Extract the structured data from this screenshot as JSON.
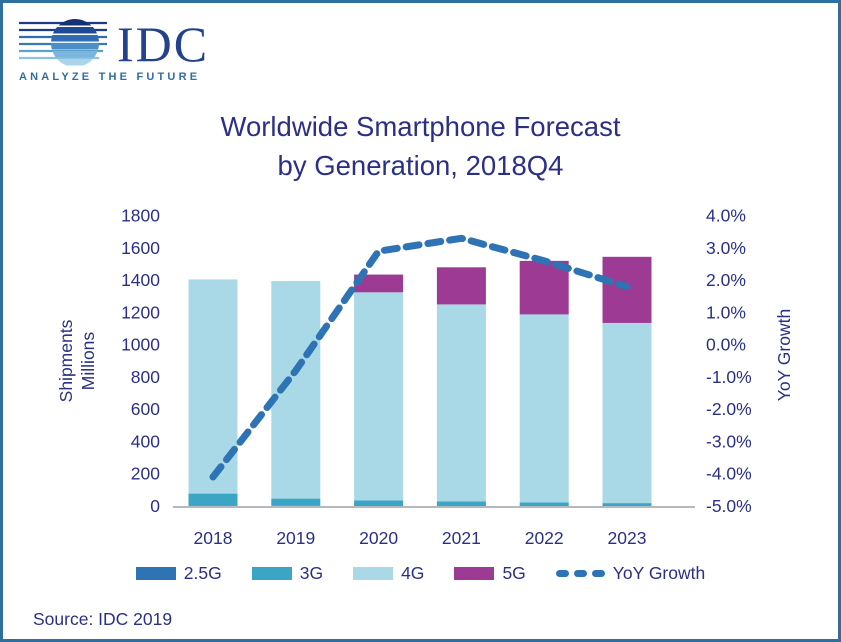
{
  "logo": {
    "name": "IDC",
    "tagline": "ANALYZE THE FUTURE"
  },
  "title": {
    "line1": "Worldwide Smartphone Forecast",
    "line2": "by Generation, 2018Q4"
  },
  "axes": {
    "left": {
      "title_line1": "Shipments",
      "title_line2": "Millions",
      "ticks": [
        "1800",
        "1600",
        "1400",
        "1200",
        "1000",
        "800",
        "600",
        "400",
        "200",
        "0"
      ]
    },
    "right": {
      "title": "YoY Growth",
      "ticks": [
        "4.0%",
        "3.0%",
        "2.0%",
        "1.0%",
        "0.0%",
        "-1.0%",
        "-2.0%",
        "-3.0%",
        "-4.0%",
        "-5.0%"
      ]
    }
  },
  "legend": {
    "items": [
      {
        "label": "2.5G",
        "color": "#2e73b4",
        "type": "swatch"
      },
      {
        "label": "3G",
        "color": "#3aa5c4",
        "type": "swatch"
      },
      {
        "label": "4G",
        "color": "#a9d8e6",
        "type": "swatch"
      },
      {
        "label": "5G",
        "color": "#9d3b94",
        "type": "swatch"
      },
      {
        "label": "YoY Growth",
        "color": "#2e73b4",
        "type": "dashed-line"
      }
    ]
  },
  "footer": {
    "source": "Source: IDC 2019"
  },
  "colors": {
    "frame": "#2e6f9f",
    "text": "#2b3086",
    "axis_line": "#b3b9be",
    "growth_line": "#2e73b4"
  },
  "chart_data": {
    "type": "bar",
    "subtype": "stacked-bars-with-dashed-line-overlay-dual-axis",
    "title": "Worldwide Smartphone Forecast by Generation, 2018Q4",
    "categories": [
      "2018",
      "2019",
      "2020",
      "2021",
      "2022",
      "2023"
    ],
    "series": [
      {
        "name": "2.5G",
        "type": "bar",
        "axis": "left",
        "color": "#2e73b4",
        "values": [
          2,
          1,
          0,
          0,
          0,
          0
        ]
      },
      {
        "name": "3G",
        "type": "bar",
        "axis": "left",
        "color": "#3aa5c4",
        "values": [
          75,
          45,
          35,
          28,
          22,
          18
        ]
      },
      {
        "name": "4G",
        "type": "bar",
        "axis": "left",
        "color": "#a9d8e6",
        "values": [
          1328,
          1349,
          1290,
          1222,
          1166,
          1117
        ]
      },
      {
        "name": "5G",
        "type": "bar",
        "axis": "left",
        "color": "#9d3b94",
        "values": [
          0,
          0,
          110,
          230,
          332,
          410
        ]
      },
      {
        "name": "YoY Growth",
        "type": "line",
        "axis": "right",
        "color": "#2e73b4",
        "style": "dashed",
        "values": [
          -4.1,
          -0.8,
          2.9,
          3.3,
          2.6,
          1.8
        ]
      }
    ],
    "totals_millions": [
      1405,
      1395,
      1435,
      1480,
      1520,
      1545
    ],
    "left_axis": {
      "label": "Shipments Millions",
      "min": 0,
      "max": 1800,
      "step": 200
    },
    "right_axis": {
      "label": "YoY Growth",
      "min": -5.0,
      "max": 4.0,
      "step": 1.0,
      "unit": "%"
    },
    "grid": false,
    "legend_position": "bottom"
  }
}
